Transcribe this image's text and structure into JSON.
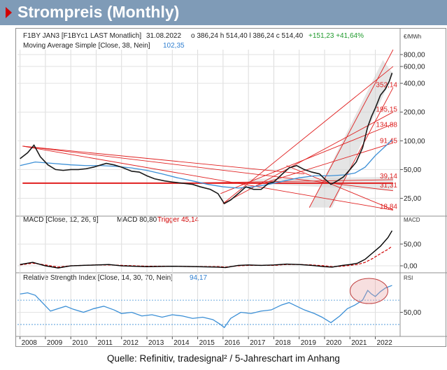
{
  "header": {
    "title": "Strompreis (Monthly)",
    "accent_color": "#d10000",
    "bg_color": "#7f9bb7"
  },
  "source": "Quelle: Refinitiv, tradesignal² / 5-Jahreschart im Anhang",
  "price_panel": {
    "instrument": "F1BY JAN3 [F1BYc1 LAST Monatlich]",
    "date": "31.08.2022",
    "ohlc": "o 386,24  h 514,40  l 386,24  c 514,40",
    "change": "+151,23  +41,64%",
    "ma_label": "Moving Average Simple  [Close, 38, Nein]",
    "ma_value": "102,35",
    "unit": "€/MWh",
    "axis_ticks": [
      "800,00",
      "600,00",
      "400,00",
      "200,00",
      "100,00",
      "50,00",
      "25,00"
    ],
    "level_labels": [
      "352,14",
      "195,15",
      "134,88",
      "91,45",
      "39,14",
      "31,31",
      "18,84"
    ]
  },
  "macd_panel": {
    "label": "MACD [Close, 12, 26, 9]",
    "value_label": "MACD 80,80",
    "trigger_label": "Trigger 45,14",
    "unit": "MACD",
    "axis_ticks": [
      "50,00",
      "0,00"
    ]
  },
  "rsi_panel": {
    "label": "Relative Strength Index [Close, 14, 30, 70, Nein]",
    "value": "94,17",
    "unit": "RSI",
    "axis_ticks": [
      "50,00"
    ]
  },
  "x_axis": {
    "years": [
      "2008",
      "2009",
      "2010",
      "2011",
      "2012",
      "2013",
      "2014",
      "2015",
      "2016",
      "2017",
      "2018",
      "2019",
      "2020",
      "2021",
      "2022"
    ]
  },
  "chart_data": {
    "type": "line",
    "x_unit": "year",
    "price": [
      [
        2008.0,
        65
      ],
      [
        2008.3,
        75
      ],
      [
        2008.55,
        90
      ],
      [
        2008.8,
        68
      ],
      [
        2009.1,
        56
      ],
      [
        2009.4,
        50
      ],
      [
        2009.7,
        49
      ],
      [
        2010.0,
        50
      ],
      [
        2010.3,
        50
      ],
      [
        2010.6,
        51
      ],
      [
        2010.9,
        53
      ],
      [
        2011.2,
        56
      ],
      [
        2011.4,
        58
      ],
      [
        2011.7,
        56
      ],
      [
        2012.0,
        53
      ],
      [
        2012.4,
        48
      ],
      [
        2012.7,
        47
      ],
      [
        2013.0,
        43
      ],
      [
        2013.3,
        40
      ],
      [
        2013.7,
        38
      ],
      [
        2014.0,
        37
      ],
      [
        2014.4,
        36
      ],
      [
        2014.8,
        35
      ],
      [
        2015.1,
        33
      ],
      [
        2015.5,
        31
      ],
      [
        2015.8,
        28
      ],
      [
        2016.05,
        22
      ],
      [
        2016.3,
        24
      ],
      [
        2016.6,
        28
      ],
      [
        2016.9,
        33
      ],
      [
        2017.2,
        31
      ],
      [
        2017.5,
        31
      ],
      [
        2017.8,
        36
      ],
      [
        2018.0,
        37
      ],
      [
        2018.3,
        44
      ],
      [
        2018.6,
        52
      ],
      [
        2018.9,
        55
      ],
      [
        2019.2,
        50
      ],
      [
        2019.5,
        47
      ],
      [
        2019.8,
        45
      ],
      [
        2020.0,
        40
      ],
      [
        2020.25,
        35
      ],
      [
        2020.5,
        38
      ],
      [
        2020.75,
        42
      ],
      [
        2021.0,
        50
      ],
      [
        2021.25,
        60
      ],
      [
        2021.5,
        85
      ],
      [
        2021.7,
        140
      ],
      [
        2021.85,
        180
      ],
      [
        2022.0,
        220
      ],
      [
        2022.2,
        300
      ],
      [
        2022.4,
        350
      ],
      [
        2022.55,
        420
      ],
      [
        2022.66,
        514
      ]
    ],
    "moving_average": [
      [
        2008.0,
        55
      ],
      [
        2008.6,
        60
      ],
      [
        2009.3,
        58
      ],
      [
        2010.0,
        56
      ],
      [
        2010.6,
        55
      ],
      [
        2011.2,
        55
      ],
      [
        2011.8,
        54
      ],
      [
        2012.4,
        52
      ],
      [
        2013.0,
        49
      ],
      [
        2013.6,
        45
      ],
      [
        2014.2,
        41
      ],
      [
        2014.8,
        38
      ],
      [
        2015.4,
        35
      ],
      [
        2016.0,
        33
      ],
      [
        2016.6,
        32
      ],
      [
        2017.2,
        33
      ],
      [
        2017.8,
        35
      ],
      [
        2018.4,
        38
      ],
      [
        2019.0,
        41
      ],
      [
        2019.6,
        43
      ],
      [
        2020.2,
        43
      ],
      [
        2020.8,
        44
      ],
      [
        2021.2,
        46
      ],
      [
        2021.6,
        53
      ],
      [
        2022.0,
        70
      ],
      [
        2022.66,
        102
      ]
    ],
    "macd": [
      [
        2008.0,
        3
      ],
      [
        2008.5,
        8
      ],
      [
        2009.0,
        0
      ],
      [
        2009.5,
        -5
      ],
      [
        2010.0,
        0
      ],
      [
        2011.0,
        2
      ],
      [
        2011.5,
        3
      ],
      [
        2012.0,
        0
      ],
      [
        2012.5,
        -1
      ],
      [
        2013.0,
        -2
      ],
      [
        2014.0,
        -1
      ],
      [
        2015.0,
        -2
      ],
      [
        2015.8,
        -3
      ],
      [
        2016.1,
        -4
      ],
      [
        2016.6,
        1
      ],
      [
        2017.0,
        2
      ],
      [
        2017.5,
        1
      ],
      [
        2018.0,
        2
      ],
      [
        2018.5,
        4
      ],
      [
        2019.0,
        3
      ],
      [
        2019.5,
        1
      ],
      [
        2020.0,
        -2
      ],
      [
        2020.3,
        -3
      ],
      [
        2020.7,
        1
      ],
      [
        2021.0,
        3
      ],
      [
        2021.3,
        6
      ],
      [
        2021.6,
        15
      ],
      [
        2021.9,
        30
      ],
      [
        2022.2,
        45
      ],
      [
        2022.5,
        65
      ],
      [
        2022.66,
        80.8
      ]
    ],
    "macd_trigger": [
      [
        2008.0,
        2
      ],
      [
        2008.5,
        6
      ],
      [
        2009.0,
        2
      ],
      [
        2009.5,
        -3
      ],
      [
        2010.0,
        0
      ],
      [
        2011.0,
        2
      ],
      [
        2011.5,
        2
      ],
      [
        2012.0,
        1
      ],
      [
        2012.5,
        0
      ],
      [
        2013.0,
        -1
      ],
      [
        2014.0,
        -1
      ],
      [
        2015.0,
        -2
      ],
      [
        2015.8,
        -2
      ],
      [
        2016.1,
        -3
      ],
      [
        2016.6,
        0
      ],
      [
        2017.0,
        1
      ],
      [
        2017.5,
        1
      ],
      [
        2018.0,
        1
      ],
      [
        2018.5,
        3
      ],
      [
        2019.0,
        3
      ],
      [
        2019.5,
        2
      ],
      [
        2020.0,
        0
      ],
      [
        2020.3,
        -2
      ],
      [
        2020.7,
        -1
      ],
      [
        2021.0,
        1
      ],
      [
        2021.3,
        3
      ],
      [
        2021.6,
        8
      ],
      [
        2021.9,
        17
      ],
      [
        2022.2,
        28
      ],
      [
        2022.5,
        38
      ],
      [
        2022.66,
        45.14
      ]
    ],
    "rsi": [
      [
        2008.0,
        80
      ],
      [
        2008.3,
        82
      ],
      [
        2008.6,
        78
      ],
      [
        2008.9,
        65
      ],
      [
        2009.2,
        52
      ],
      [
        2009.5,
        56
      ],
      [
        2009.8,
        60
      ],
      [
        2010.1,
        55
      ],
      [
        2010.5,
        50
      ],
      [
        2010.9,
        56
      ],
      [
        2011.3,
        60
      ],
      [
        2011.7,
        54
      ],
      [
        2012.0,
        48
      ],
      [
        2012.4,
        50
      ],
      [
        2012.8,
        44
      ],
      [
        2013.2,
        46
      ],
      [
        2013.6,
        42
      ],
      [
        2014.0,
        46
      ],
      [
        2014.4,
        44
      ],
      [
        2014.8,
        40
      ],
      [
        2015.2,
        42
      ],
      [
        2015.6,
        38
      ],
      [
        2015.9,
        30
      ],
      [
        2016.05,
        25
      ],
      [
        2016.3,
        40
      ],
      [
        2016.7,
        50
      ],
      [
        2017.1,
        48
      ],
      [
        2017.5,
        52
      ],
      [
        2017.9,
        54
      ],
      [
        2018.3,
        62
      ],
      [
        2018.6,
        66
      ],
      [
        2018.9,
        60
      ],
      [
        2019.2,
        54
      ],
      [
        2019.6,
        48
      ],
      [
        2019.9,
        42
      ],
      [
        2020.25,
        33
      ],
      [
        2020.6,
        44
      ],
      [
        2020.9,
        56
      ],
      [
        2021.2,
        62
      ],
      [
        2021.5,
        70
      ],
      [
        2021.7,
        86
      ],
      [
        2021.85,
        80
      ],
      [
        2022.0,
        76
      ],
      [
        2022.2,
        84
      ],
      [
        2022.4,
        90
      ],
      [
        2022.66,
        94.17
      ]
    ],
    "y_scale": "log",
    "price_range": [
      18,
      900
    ],
    "macd_range": [
      -8,
      95
    ],
    "rsi_range": [
      15,
      100
    ],
    "colors": {
      "price": "#1a1a1a",
      "ma": "#3b8fd6",
      "macd": "#000000",
      "trigger": "#d00000",
      "rsi": "#3b8fd6",
      "trend": "#e02020"
    }
  }
}
